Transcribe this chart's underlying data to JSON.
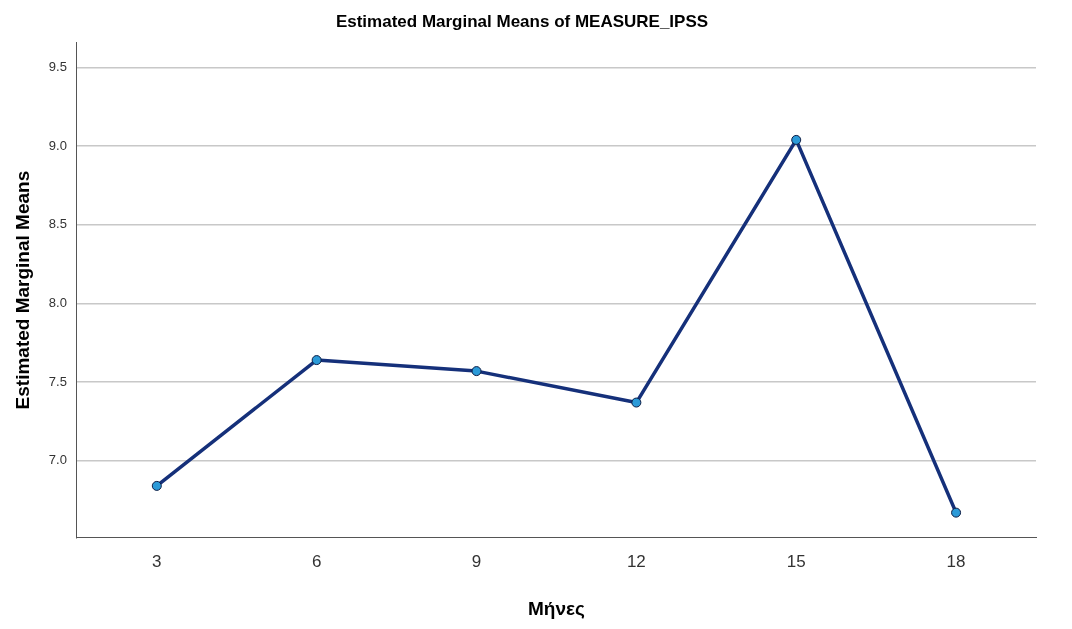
{
  "chart_data": {
    "type": "line",
    "title": "Estimated Marginal Means of MEASURE_IPSS",
    "xlabel": "Μήνες",
    "ylabel": "Estimated Marginal Means",
    "categories": [
      "3",
      "6",
      "9",
      "12",
      "15",
      "18"
    ],
    "series": [
      {
        "color": "#15307a",
        "values": [
          6.84,
          7.64,
          7.57,
          7.37,
          9.04,
          6.67
        ]
      }
    ],
    "ylim": [
      6.51,
      9.66
    ],
    "yticks": [
      {
        "value": 7.0,
        "label": "7.0"
      },
      {
        "value": 7.5,
        "label": "7.5"
      },
      {
        "value": 8.0,
        "label": "8.0"
      },
      {
        "value": 8.5,
        "label": "8.5"
      },
      {
        "value": 9.0,
        "label": "9.0"
      },
      {
        "value": 9.5,
        "label": "9.5"
      }
    ],
    "grid": "y",
    "legend": false,
    "marker": "circle",
    "line_style": "solid"
  }
}
